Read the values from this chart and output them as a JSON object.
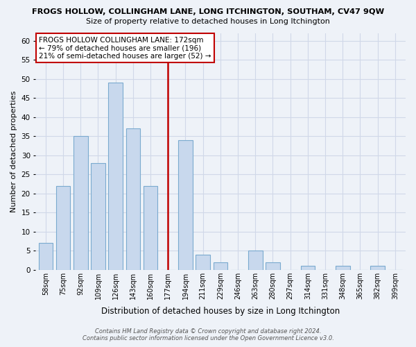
{
  "title": "FROGS HOLLOW, COLLINGHAM LANE, LONG ITCHINGTON, SOUTHAM, CV47 9QW",
  "subtitle": "Size of property relative to detached houses in Long Itchington",
  "xlabel": "Distribution of detached houses by size in Long Itchington",
  "ylabel": "Number of detached properties",
  "categories": [
    "58sqm",
    "75sqm",
    "92sqm",
    "109sqm",
    "126sqm",
    "143sqm",
    "160sqm",
    "177sqm",
    "194sqm",
    "211sqm",
    "229sqm",
    "246sqm",
    "263sqm",
    "280sqm",
    "297sqm",
    "314sqm",
    "331sqm",
    "348sqm",
    "365sqm",
    "382sqm",
    "399sqm"
  ],
  "values": [
    7,
    22,
    35,
    28,
    49,
    37,
    22,
    0,
    34,
    4,
    2,
    0,
    5,
    2,
    0,
    1,
    0,
    1,
    0,
    1,
    0
  ],
  "bar_color": "#c8d8ed",
  "bar_edge_color": "#7aaacf",
  "vline_index": 7,
  "vline_color": "#c00000",
  "ylim": [
    0,
    62
  ],
  "yticks": [
    0,
    5,
    10,
    15,
    20,
    25,
    30,
    35,
    40,
    45,
    50,
    55,
    60
  ],
  "annotation_title": "FROGS HOLLOW COLLINGHAM LANE: 172sqm",
  "annotation_line1": "← 79% of detached houses are smaller (196)",
  "annotation_line2": "21% of semi-detached houses are larger (52) →",
  "annotation_box_color": "#ffffff",
  "annotation_box_edge": "#c00000",
  "bg_color": "#eef2f8",
  "grid_color": "#d0d8e8",
  "footer1": "Contains HM Land Registry data © Crown copyright and database right 2024.",
  "footer2": "Contains public sector information licensed under the Open Government Licence v3.0."
}
